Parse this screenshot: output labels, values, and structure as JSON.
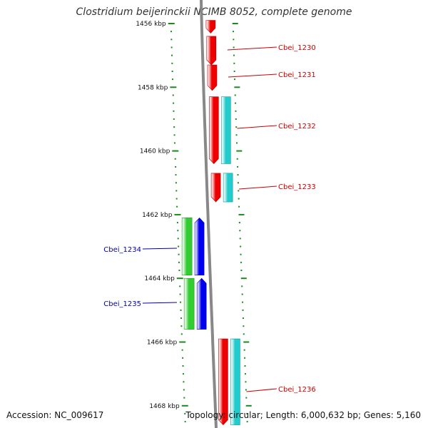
{
  "title": "Clostridium beijerinckii NCIMB 8052, complete genome",
  "accession": "Accession: NC_009617",
  "topology": "Topology: circular; Length: 6,000,632 bp; Genes: 5,160",
  "colors": {
    "forward_gene": "#ee0000",
    "forward_cds": "#22cccc",
    "reverse_gene": "#33cc33",
    "reverse_cds": "#0000ee",
    "backbone": "#888888",
    "tick": "#1a8c1a",
    "forward_label": "#cc0000",
    "reverse_label": "#0000aa"
  },
  "ticks": [
    {
      "label": "1456 kbp",
      "kbp": 1456
    },
    {
      "label": "1458 kbp",
      "kbp": 1458
    },
    {
      "label": "1460 kbp",
      "kbp": 1460
    },
    {
      "label": "1462 kbp",
      "kbp": 1462
    },
    {
      "label": "1464 kbp",
      "kbp": 1464
    },
    {
      "label": "1466 kbp",
      "kbp": 1466
    },
    {
      "label": "1468 kbp",
      "kbp": 1468
    }
  ],
  "genes": [
    {
      "name": "Cbei_1230",
      "strand": "+",
      "start_kbp": 1455.9,
      "end_kbp": 1456.3,
      "labeled": false
    },
    {
      "name": "Cbei_1230",
      "strand": "+",
      "start_kbp": 1456.4,
      "end_kbp": 1457.3,
      "labeled": true
    },
    {
      "name": "Cbei_1231",
      "strand": "+",
      "start_kbp": 1457.3,
      "end_kbp": 1458.1,
      "labeled": true
    },
    {
      "name": "Cbei_1232",
      "strand": "+",
      "start_kbp": 1458.3,
      "end_kbp": 1460.4,
      "labeled": true,
      "cds": true
    },
    {
      "name": "Cbei_1233",
      "strand": "+",
      "start_kbp": 1460.7,
      "end_kbp": 1461.6,
      "labeled": true,
      "cds": true
    },
    {
      "name": "Cbei_1234",
      "strand": "-",
      "start_kbp": 1462.1,
      "end_kbp": 1463.9,
      "labeled": true,
      "cds": true
    },
    {
      "name": "Cbei_1235",
      "strand": "-",
      "start_kbp": 1464.0,
      "end_kbp": 1465.6,
      "labeled": true,
      "cds": true
    },
    {
      "name": "Cbei_1236",
      "strand": "+",
      "start_kbp": 1465.9,
      "end_kbp": 1468.6,
      "labeled": true,
      "cds": true
    }
  ]
}
